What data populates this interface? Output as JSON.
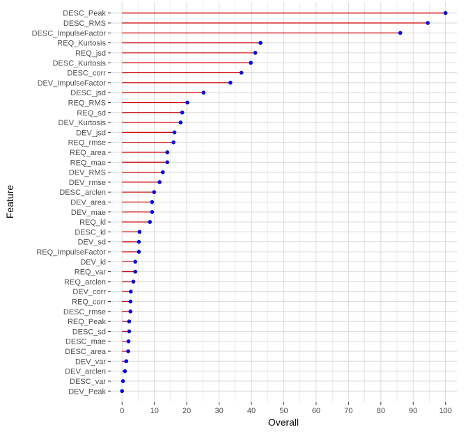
{
  "chart_data": {
    "type": "lollipop",
    "xlabel": "Overall",
    "ylabel": "Feature",
    "xlim": [
      -3.5,
      103.5
    ],
    "xticks": [
      0,
      10,
      20,
      30,
      40,
      50,
      60,
      70,
      80,
      90,
      100
    ],
    "grid": true,
    "colors": {
      "segment": "#cc0000",
      "point": "#0000ff",
      "grid": "#dcdcdc"
    },
    "points": [
      {
        "feature": "DESC_Peak",
        "value": 100
      },
      {
        "feature": "DESC_RMS",
        "value": 94.5
      },
      {
        "feature": "DESC_ImpulseFactor",
        "value": 86
      },
      {
        "feature": "REQ_Kurtosis",
        "value": 42.8
      },
      {
        "feature": "REQ_jsd",
        "value": 41.2
      },
      {
        "feature": "DESC_Kurtosis",
        "value": 39.8
      },
      {
        "feature": "DESC_corr",
        "value": 36.9
      },
      {
        "feature": "DEV_ImpulseFactor",
        "value": 33.5
      },
      {
        "feature": "DESC_jsd",
        "value": 25.2
      },
      {
        "feature": "REQ_RMS",
        "value": 20.2
      },
      {
        "feature": "REQ_sd",
        "value": 18.6
      },
      {
        "feature": "DEV_Kurtosis",
        "value": 18.1
      },
      {
        "feature": "DEV_jsd",
        "value": 16.2
      },
      {
        "feature": "REQ_rmse",
        "value": 15.9
      },
      {
        "feature": "REQ_area",
        "value": 14.0
      },
      {
        "feature": "REQ_mae",
        "value": 14.0
      },
      {
        "feature": "DEV_RMS",
        "value": 12.6
      },
      {
        "feature": "DEV_rmse",
        "value": 11.6
      },
      {
        "feature": "DESC_arclen",
        "value": 9.9
      },
      {
        "feature": "DEV_area",
        "value": 9.3
      },
      {
        "feature": "DEV_mae",
        "value": 9.3
      },
      {
        "feature": "REQ_kl",
        "value": 8.6
      },
      {
        "feature": "DESC_kl",
        "value": 5.4
      },
      {
        "feature": "DEV_sd",
        "value": 5.2
      },
      {
        "feature": "REQ_ImpulseFactor",
        "value": 5.2
      },
      {
        "feature": "DEV_kl",
        "value": 4.1
      },
      {
        "feature": "REQ_var",
        "value": 4.1
      },
      {
        "feature": "REQ_arclen",
        "value": 3.5
      },
      {
        "feature": "DEV_corr",
        "value": 2.7
      },
      {
        "feature": "REQ_corr",
        "value": 2.6
      },
      {
        "feature": "DESC_rmse",
        "value": 2.6
      },
      {
        "feature": "REQ_Peak",
        "value": 2.2
      },
      {
        "feature": "DESC_sd",
        "value": 2.2
      },
      {
        "feature": "DESC_mae",
        "value": 2.0
      },
      {
        "feature": "DESC_area",
        "value": 1.9
      },
      {
        "feature": "DEV_var",
        "value": 1.3
      },
      {
        "feature": "DEV_arclen",
        "value": 0.9
      },
      {
        "feature": "DESC_var",
        "value": 0.3
      },
      {
        "feature": "DEV_Peak",
        "value": 0
      }
    ]
  }
}
